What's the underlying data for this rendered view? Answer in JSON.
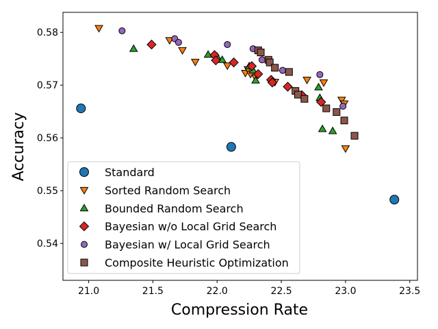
{
  "chart_data": {
    "type": "scatter",
    "title": "",
    "xlabel": "Compression Rate",
    "ylabel": "Accuracy",
    "xlim": [
      20.8,
      23.56
    ],
    "ylim": [
      0.533,
      0.5838
    ],
    "xticks": [
      21.0,
      21.5,
      22.0,
      22.5,
      23.0,
      23.5
    ],
    "xtick_labels": [
      "21.0",
      "21.5",
      "22.0",
      "22.5",
      "23.0",
      "23.5"
    ],
    "yticks": [
      0.54,
      0.55,
      0.56,
      0.57,
      0.58
    ],
    "ytick_labels": [
      "0.54",
      "0.55",
      "0.56",
      "0.57",
      "0.58"
    ],
    "grid": false,
    "legend_position": "lower-left",
    "series": [
      {
        "name": "Standard",
        "marker": "circle-large",
        "color": "#1f77b4",
        "points": [
          [
            20.94,
            0.5656
          ],
          [
            22.11,
            0.5583
          ],
          [
            23.38,
            0.5483
          ]
        ]
      },
      {
        "name": "Sorted Random Search",
        "marker": "triangle-down",
        "color": "#ff7f0e",
        "points": [
          [
            21.08,
            0.5808
          ],
          [
            21.63,
            0.5785
          ],
          [
            21.73,
            0.5766
          ],
          [
            21.83,
            0.5744
          ],
          [
            22.08,
            0.5737
          ],
          [
            22.22,
            0.5723
          ],
          [
            22.24,
            0.573
          ],
          [
            22.26,
            0.5721
          ],
          [
            22.3,
            0.5714
          ],
          [
            22.45,
            0.5706
          ],
          [
            22.7,
            0.571
          ],
          [
            22.83,
            0.5705
          ],
          [
            22.97,
            0.5672
          ],
          [
            22.99,
            0.5665
          ],
          [
            23.0,
            0.558
          ]
        ]
      },
      {
        "name": "Bounded Random Search",
        "marker": "triangle-up",
        "color": "#2ca02c",
        "points": [
          [
            21.35,
            0.5769
          ],
          [
            21.93,
            0.5758
          ],
          [
            22.0,
            0.5754
          ],
          [
            22.04,
            0.5748
          ],
          [
            22.25,
            0.5736
          ],
          [
            22.28,
            0.5728
          ],
          [
            22.3,
            0.5709
          ],
          [
            22.79,
            0.5696
          ],
          [
            22.8,
            0.5676
          ],
          [
            22.82,
            0.5617
          ],
          [
            22.9,
            0.5613
          ]
        ]
      },
      {
        "name": "Bayesian w/o Local Grid Search",
        "marker": "diamond",
        "color": "#d62728",
        "points": [
          [
            21.49,
            0.5777
          ],
          [
            21.98,
            0.5757
          ],
          [
            21.99,
            0.5747
          ],
          [
            22.13,
            0.5743
          ],
          [
            22.27,
            0.5736
          ],
          [
            22.32,
            0.5721
          ],
          [
            22.42,
            0.571
          ],
          [
            22.43,
            0.5705
          ],
          [
            22.55,
            0.5697
          ],
          [
            22.66,
            0.5681
          ],
          [
            22.81,
            0.5668
          ]
        ]
      },
      {
        "name": "Bayesian w/ Local Grid Search",
        "marker": "circle",
        "color": "#9467bd",
        "points": [
          [
            21.26,
            0.5803
          ],
          [
            21.67,
            0.5788
          ],
          [
            21.7,
            0.5781
          ],
          [
            22.08,
            0.5777
          ],
          [
            22.28,
            0.5769
          ],
          [
            22.35,
            0.5748
          ],
          [
            22.51,
            0.5728
          ],
          [
            22.8,
            0.572
          ],
          [
            22.98,
            0.566
          ]
        ]
      },
      {
        "name": "Composite Heuristic Optimization",
        "marker": "square",
        "color": "#8c564b",
        "points": [
          [
            22.32,
            0.5766
          ],
          [
            22.34,
            0.5762
          ],
          [
            22.4,
            0.5748
          ],
          [
            22.41,
            0.5743
          ],
          [
            22.45,
            0.5733
          ],
          [
            22.56,
            0.5725
          ],
          [
            22.61,
            0.5689
          ],
          [
            22.63,
            0.5682
          ],
          [
            22.68,
            0.5674
          ],
          [
            22.85,
            0.5656
          ],
          [
            22.93,
            0.5649
          ],
          [
            22.99,
            0.5633
          ],
          [
            23.07,
            0.5604
          ]
        ]
      }
    ]
  }
}
